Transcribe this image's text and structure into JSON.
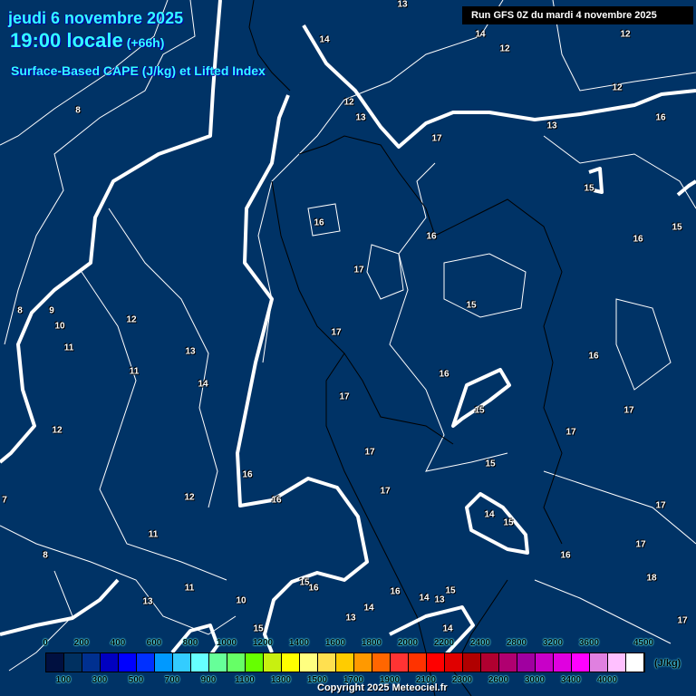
{
  "header": {
    "date": "jeudi 6 novembre 2025",
    "time": "19:00 locale",
    "lead": "(+66h)",
    "parameter": "Surface-Based CAPE (J/kg) et Lifted Index",
    "run": "Run GFS 0Z du mardi 4 novembre 2025"
  },
  "map": {
    "background_color": "#003366",
    "li_zero_line_color": "#ffffff",
    "contour_labels": [
      "13",
      "14",
      "14",
      "12",
      "12",
      "12",
      "8",
      "12",
      "13",
      "17",
      "13",
      "16",
      "15",
      "16",
      "16",
      "16",
      "15",
      "17",
      "15",
      "8",
      "9",
      "10",
      "11",
      "12",
      "17",
      "13",
      "11",
      "14",
      "16",
      "16",
      "17",
      "15",
      "17",
      "12",
      "17",
      "17",
      "15",
      "16",
      "17",
      "12",
      "16",
      "17",
      "14",
      "15",
      "7",
      "11",
      "8",
      "17",
      "16",
      "18",
      "11",
      "15",
      "16",
      "10",
      "13",
      "16",
      "14",
      "13",
      "15",
      "14",
      "13",
      "17",
      "15",
      "14"
    ]
  },
  "legend": {
    "unit": "(J/kg)",
    "top_labels": [
      "0",
      "200",
      "400",
      "600",
      "800",
      "1000",
      "1200",
      "1400",
      "1600",
      "1800",
      "2000",
      "2200",
      "2400",
      "2800",
      "3200",
      "3600",
      "4500"
    ],
    "bottom_labels": [
      "100",
      "300",
      "500",
      "700",
      "900",
      "1100",
      "1300",
      "1500",
      "1700",
      "1900",
      "2100",
      "2300",
      "2600",
      "3000",
      "3400",
      "4000"
    ],
    "colors": [
      "#001040",
      "#003060",
      "#003090",
      "#0000c0",
      "#0000ff",
      "#0030ff",
      "#0099ff",
      "#33ccff",
      "#66ffff",
      "#66ff99",
      "#66ff66",
      "#66ff00",
      "#c8f010",
      "#ffff00",
      "#ffff80",
      "#ffe050",
      "#ffcc00",
      "#ff9900",
      "#ff6600",
      "#ff3333",
      "#ff3300",
      "#ff0000",
      "#e00000",
      "#b00000",
      "#b00030",
      "#b00070",
      "#a000a0",
      "#c800c8",
      "#e000e0",
      "#ff00ff",
      "#e080e0",
      "#ffc0ff",
      "#ffffff"
    ]
  },
  "footer": {
    "copyright": "Copyright 2025 Meteociel.fr"
  }
}
